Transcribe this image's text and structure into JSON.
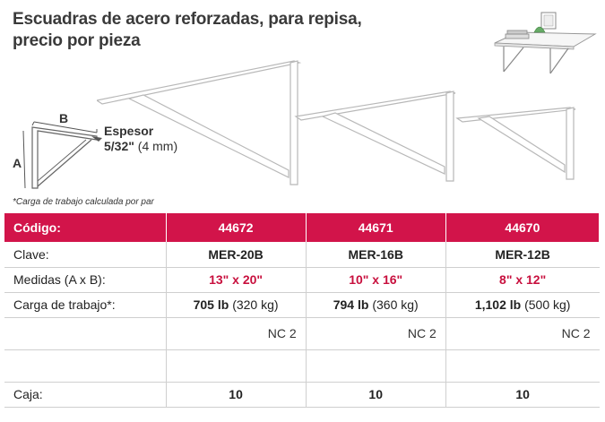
{
  "title": {
    "line1": "Escuadras de acero reforzadas, para repisa,",
    "line2": "precio por pieza"
  },
  "diagram": {
    "label_a": "A",
    "label_b": "B"
  },
  "espesor": {
    "label": "Espesor",
    "fraction": "5/32\"",
    "metric": "(4 mm)"
  },
  "footnote": "*Carga de trabajo calculada por par",
  "table": {
    "header": {
      "label": "Código:",
      "codes": [
        "44672",
        "44671",
        "44670"
      ]
    },
    "clave": {
      "label": "Clave:",
      "values": [
        "MER-20B",
        "MER-16B",
        "MER-12B"
      ]
    },
    "medidas": {
      "label": "Medidas (A x B):",
      "values": [
        "13\" x 20\"",
        "10\" x 16\"",
        "8\" x 12\""
      ]
    },
    "carga": {
      "label": "Carga de trabajo*:",
      "values": [
        {
          "lb": "705 lb",
          "kg": "(320 kg)"
        },
        {
          "lb": "794 lb",
          "kg": "(360 kg)"
        },
        {
          "lb": "1,102 lb",
          "kg": "(500 kg)"
        }
      ]
    },
    "nc": {
      "values": [
        "NC 2",
        "NC 2",
        "NC 2"
      ]
    },
    "caja": {
      "label": "Caja:",
      "values": [
        "10",
        "10",
        "10"
      ]
    }
  },
  "colors": {
    "header_bg": "#d2144a",
    "accent_red": "#c8103e"
  }
}
